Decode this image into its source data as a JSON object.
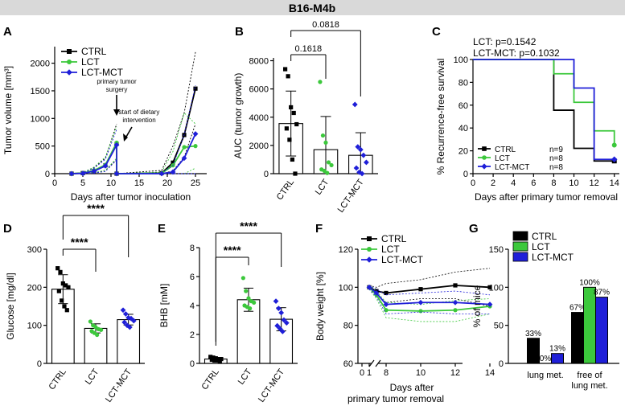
{
  "figure_title": "B16-M4b",
  "colors": {
    "ctrl": "#000000",
    "lct": "#3cc83c",
    "lctmct": "#1f1fd8",
    "header_bg": "#d9d9d9"
  },
  "chart_data": [
    {
      "panel": "A",
      "type": "line",
      "ylabel": "Tumor volume [mm³]",
      "xlabel": "Days after tumor inoculation",
      "xlim": [
        0,
        27
      ],
      "ylim": [
        0,
        2300
      ],
      "xticks": [
        "0",
        "5",
        "10",
        "15",
        "20",
        "25"
      ],
      "yticks": [
        "0",
        "500",
        "1000",
        "1500",
        "2000"
      ],
      "legend": [
        "CTRL",
        "LCT",
        "LCT-MCT"
      ],
      "annotations": [
        {
          "text": "primary tumor",
          "text2": "surgery"
        },
        {
          "text": "start of dietary",
          "text2": "intervention"
        }
      ],
      "series": [
        {
          "name": "CTRL",
          "color": "ctrl",
          "pre": {
            "x": [
              3,
              5,
              7,
              9,
              11
            ],
            "y": [
              0,
              10,
              50,
              150,
              540
            ]
          },
          "post": {
            "x": [
              11,
              19,
              21,
              23,
              25
            ],
            "y": [
              0,
              10,
              200,
              700,
              1540
            ]
          },
          "ci_hi": [
            0,
            20,
            110,
            280,
            900,
            0,
            60,
            500,
            1100,
            2200
          ],
          "ci_lo": [
            0,
            0,
            10,
            60,
            250,
            0,
            0,
            50,
            300,
            900
          ]
        },
        {
          "name": "LCT",
          "color": "lct",
          "pre": {
            "x": [
              3,
              5,
              7,
              9,
              11
            ],
            "y": [
              0,
              10,
              60,
              160,
              560
            ]
          },
          "post": {
            "x": [
              11,
              19,
              21,
              23,
              25
            ],
            "y": [
              0,
              5,
              150,
              480,
              500
            ]
          },
          "ci_hi": [
            0,
            20,
            120,
            300,
            850,
            0,
            30,
            400,
            1100,
            900
          ],
          "ci_lo": [
            0,
            0,
            20,
            60,
            280,
            0,
            0,
            0,
            0,
            100
          ]
        },
        {
          "name": "LCT-MCT",
          "color": "lctmct",
          "pre": {
            "x": [
              3,
              5,
              7,
              9,
              11
            ],
            "y": [
              0,
              5,
              45,
              140,
              520
            ]
          },
          "post": {
            "x": [
              11,
              19,
              21,
              23,
              25
            ],
            "y": [
              0,
              0,
              30,
              280,
              720
            ]
          },
          "ci_hi": [
            0,
            15,
            100,
            260,
            800,
            0,
            10,
            150,
            700,
            1600
          ],
          "ci_lo": [
            0,
            0,
            10,
            40,
            250,
            0,
            0,
            0,
            0,
            0
          ]
        }
      ]
    },
    {
      "panel": "B",
      "type": "bar",
      "ylabel": "AUC (tumor growth)",
      "categories": [
        "CTRL",
        "LCT",
        "LCT-MCT"
      ],
      "values": [
        3550,
        1700,
        1300
      ],
      "sd": [
        2300,
        2350,
        1600
      ],
      "ylim": [
        0,
        8200
      ],
      "yticks": [
        "0",
        "2000",
        "4000",
        "6000",
        "8000"
      ],
      "points": [
        [
          7400,
          6900,
          4700,
          4300,
          3500,
          3200,
          2400,
          1000,
          0
        ],
        [
          6500,
          2700,
          2200,
          800,
          600,
          300,
          200,
          50
        ],
        [
          4900,
          1900,
          1700,
          1300,
          800,
          400,
          100,
          0
        ]
      ],
      "comparisons": [
        {
          "label": "0.1618"
        },
        {
          "label": "0.0818"
        }
      ]
    },
    {
      "panel": "C",
      "type": "line",
      "ylabel": "% Recurrence-free survival",
      "xlabel": "Days after primary tumor removal",
      "xlim": [
        0,
        14.5
      ],
      "ylim": [
        0,
        100
      ],
      "xticks": [
        "0",
        "2",
        "4",
        "6",
        "8",
        "10",
        "12",
        "14"
      ],
      "yticks": [
        "0",
        "20",
        "40",
        "60",
        "80",
        "100"
      ],
      "stats": [
        "LCT: p=0.1542",
        "LCT-MCT: p=0.1032"
      ],
      "series": [
        {
          "name": "CTRL",
          "n": "n=9",
          "color": "ctrl",
          "steps": [
            [
              0,
              100
            ],
            [
              8,
              100
            ],
            [
              8,
              55.6
            ],
            [
              10,
              55.6
            ],
            [
              10,
              22.2
            ],
            [
              12,
              22.2
            ],
            [
              12,
              11.1
            ],
            [
              14,
              11.1
            ]
          ],
          "censor": [
            [
              14,
              11.1
            ]
          ]
        },
        {
          "name": "LCT",
          "n": "n=8",
          "color": "lct",
          "steps": [
            [
              0,
              100
            ],
            [
              8,
              100
            ],
            [
              8,
              87.5
            ],
            [
              10,
              87.5
            ],
            [
              10,
              62.5
            ],
            [
              12,
              62.5
            ],
            [
              12,
              37.5
            ],
            [
              14,
              37.5
            ],
            [
              14,
              25
            ]
          ],
          "censor": [
            [
              14,
              25
            ]
          ]
        },
        {
          "name": "LCT-MCT",
          "n": "n=8",
          "color": "lctmct",
          "steps": [
            [
              0,
              100
            ],
            [
              10,
              100
            ],
            [
              10,
              75
            ],
            [
              12,
              75
            ],
            [
              12,
              12.5
            ],
            [
              14,
              12.5
            ]
          ],
          "censor": [
            [
              14,
              12.5
            ]
          ]
        }
      ]
    },
    {
      "panel": "D",
      "type": "bar",
      "ylabel": "Glucose [mg/dl]",
      "categories": [
        "CTRL",
        "LCT",
        "LCT-MCT"
      ],
      "values": [
        195,
        92,
        115
      ],
      "sd": [
        38,
        12,
        14
      ],
      "ylim": [
        0,
        300
      ],
      "yticks": [
        "0",
        "100",
        "200",
        "300"
      ],
      "points": [
        [
          250,
          240,
          210,
          205,
          200,
          190,
          165,
          150,
          140
        ],
        [
          110,
          100,
          95,
          90,
          88,
          85,
          80,
          75
        ],
        [
          140,
          130,
          120,
          118,
          112,
          108,
          100,
          95
        ]
      ],
      "comparisons": [
        {
          "label": "****"
        },
        {
          "label": "****"
        }
      ]
    },
    {
      "panel": "E",
      "type": "bar",
      "ylabel": "BHB [mM]",
      "categories": [
        "CTRL",
        "LCT",
        "LCT-MCT"
      ],
      "values": [
        0.3,
        4.4,
        3.05
      ],
      "sd": [
        0.1,
        0.8,
        0.8
      ],
      "ylim": [
        0,
        8
      ],
      "yticks": [
        "0",
        "2",
        "4",
        "6",
        "8"
      ],
      "points": [
        [
          0.45,
          0.4,
          0.35,
          0.3,
          0.3,
          0.25,
          0.2,
          0.2,
          0.15
        ],
        [
          5.9,
          5.0,
          4.5,
          4.3,
          4.2,
          4.0,
          3.9,
          3.8
        ],
        [
          4.3,
          3.8,
          3.5,
          3.0,
          2.8,
          2.6,
          2.4,
          2.2
        ]
      ],
      "comparisons": [
        {
          "label": "****"
        },
        {
          "label": "****"
        }
      ]
    },
    {
      "panel": "F",
      "type": "line",
      "ylabel": "Body weight [%]",
      "xlabel": "Days after",
      "xlabel2": "primary tumor removal",
      "ylim": [
        60,
        120
      ],
      "yticks": [
        "60",
        "80",
        "100",
        "120"
      ],
      "xticks": [
        "0",
        "1",
        "8",
        "10",
        "12",
        "14"
      ],
      "legend": [
        "CTRL",
        "LCT",
        "LCT-MCT"
      ],
      "series": [
        {
          "name": "CTRL",
          "color": "ctrl",
          "x": [
            1,
            2,
            8,
            10,
            12,
            14
          ],
          "y": [
            100,
            98,
            97,
            99,
            101,
            100
          ],
          "ci_hi": [
            101,
            100,
            102,
            104,
            108,
            110
          ],
          "ci_lo": [
            99,
            96,
            92,
            94,
            94,
            90
          ]
        },
        {
          "name": "LCT",
          "color": "lct",
          "x": [
            1,
            2,
            8,
            10,
            12,
            14
          ],
          "y": [
            100,
            96,
            88,
            87.5,
            88,
            90
          ],
          "ci_hi": [
            101,
            98,
            92,
            91,
            93,
            94
          ],
          "ci_lo": [
            99,
            94,
            84,
            82,
            82,
            86
          ]
        },
        {
          "name": "LCT-MCT",
          "color": "lctmct",
          "x": [
            1,
            2,
            8,
            10,
            12,
            14
          ],
          "y": [
            100,
            97,
            91,
            92,
            92,
            91
          ],
          "ci_hi": [
            101,
            99,
            96,
            97,
            98,
            96
          ],
          "ci_lo": [
            99,
            95,
            86,
            87,
            86,
            86
          ]
        }
      ]
    },
    {
      "panel": "G",
      "type": "bar",
      "ylabel": "% of mice",
      "groups": [
        {
          "label": "lung met.",
          "label2": ""
        },
        {
          "label": "free of",
          "label2": "lung met."
        }
      ],
      "series": [
        {
          "name": "CTRL",
          "color": "ctrl",
          "values": [
            33,
            67
          ],
          "labels": [
            "33%",
            "67%"
          ]
        },
        {
          "name": "LCT",
          "color": "lct",
          "values": [
            0,
            100
          ],
          "labels": [
            "0%",
            "100%"
          ]
        },
        {
          "name": "LCT-MCT",
          "color": "lctmct",
          "values": [
            13,
            87
          ],
          "labels": [
            "13%",
            "87%"
          ]
        }
      ],
      "ylim": [
        0,
        150
      ],
      "yticks": [
        "0",
        "50",
        "100",
        "150"
      ],
      "legend": [
        "CTRL",
        "LCT",
        "LCT-MCT"
      ]
    }
  ]
}
